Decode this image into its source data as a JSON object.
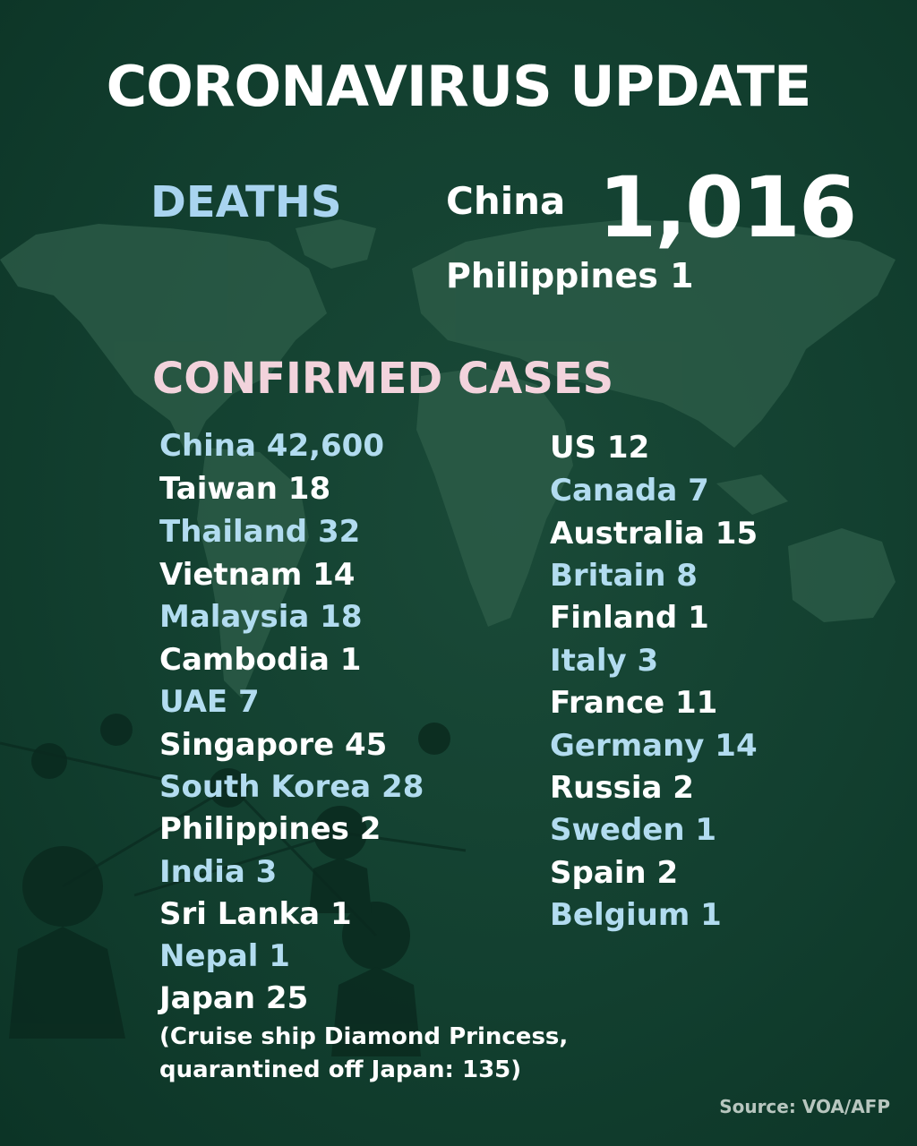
{
  "title": "CORONAVIRUS UPDATE",
  "deaths": {
    "label": "DEATHS",
    "china_name": "China",
    "china_value": "1,016",
    "philippines": "Philippines 1"
  },
  "cases": {
    "label": "CONFIRMED CASES",
    "left": [
      {
        "text": "China 42,600",
        "color": "blue"
      },
      {
        "text": "Taiwan 18",
        "color": "white"
      },
      {
        "text": "Thailand 32",
        "color": "blue"
      },
      {
        "text": "Vietnam 14",
        "color": "white"
      },
      {
        "text": "Malaysia 18",
        "color": "blue"
      },
      {
        "text": "Cambodia 1",
        "color": "white"
      },
      {
        "text": "UAE 7",
        "color": "blue"
      },
      {
        "text": "Singapore 45",
        "color": "white"
      },
      {
        "text": "South Korea 28",
        "color": "blue"
      },
      {
        "text": "Philippines 2",
        "color": "white"
      },
      {
        "text": "India 3",
        "color": "blue"
      },
      {
        "text": "Sri Lanka 1",
        "color": "white"
      },
      {
        "text": "Nepal 1",
        "color": "blue"
      },
      {
        "text": "Japan 25",
        "color": "white"
      }
    ],
    "right": [
      {
        "text": "US 12",
        "color": "white"
      },
      {
        "text": "Canada 7",
        "color": "blue"
      },
      {
        "text": "Australia 15",
        "color": "white"
      },
      {
        "text": "Britain 8",
        "color": "blue"
      },
      {
        "text": "Finland 1",
        "color": "white"
      },
      {
        "text": "Italy 3",
        "color": "blue"
      },
      {
        "text": "France 11",
        "color": "white"
      },
      {
        "text": "Germany 14",
        "color": "blue"
      },
      {
        "text": "Russia 2",
        "color": "white"
      },
      {
        "text": "Sweden 1",
        "color": "blue"
      },
      {
        "text": "Spain 2",
        "color": "white"
      },
      {
        "text": "Belgium 1",
        "color": "blue"
      }
    ],
    "note_line1": "(Cruise ship Diamond Princess,",
    "note_line2": "quarantined off Japan: 135)"
  },
  "source": "Source: VOA/AFP",
  "colors": {
    "background": "#123f2f",
    "accent_blue": "#b2dcf0",
    "accent_pink": "#f2d3dc",
    "text_white": "#ffffff"
  }
}
